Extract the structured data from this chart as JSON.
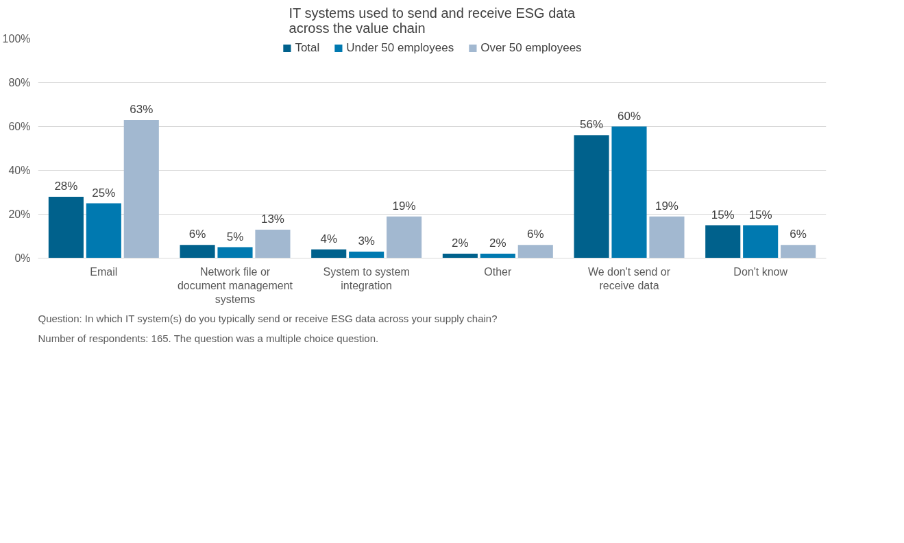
{
  "chart_data": {
    "type": "bar",
    "title": "IT systems used to send and receive ESG data\nacross the value chain",
    "categories": [
      "Email",
      "Network file or document management systems",
      "System to system integration",
      "Other",
      "We don't send or receive data",
      "Don't know"
    ],
    "series": [
      {
        "name": "Total",
        "color": "#00618c",
        "values": [
          28,
          6,
          4,
          2,
          56,
          15
        ],
        "value_labels": [
          "28%",
          "6%",
          "4%",
          "2%",
          "56%",
          "15%"
        ]
      },
      {
        "name": "Under 50 employees",
        "color": "#0079b0",
        "values": [
          25,
          5,
          3,
          2,
          60,
          15
        ],
        "value_labels": [
          "25%",
          "5%",
          "3%",
          "2%",
          "60%",
          "15%"
        ]
      },
      {
        "name": "Over 50 employees",
        "color": "#a2b8d0",
        "values": [
          63,
          13,
          19,
          6,
          19,
          6
        ],
        "value_labels": [
          "63%",
          "13%",
          "19%",
          "6%",
          "19%",
          "6%"
        ]
      }
    ],
    "ylim": [
      0,
      100
    ],
    "yticks": [
      {
        "value": 0,
        "label": "0%"
      },
      {
        "value": 20,
        "label": "20%"
      },
      {
        "value": 40,
        "label": "40%"
      },
      {
        "value": 60,
        "label": "60%"
      },
      {
        "value": 80,
        "label": "80%"
      },
      {
        "value": 100,
        "label": "100%"
      }
    ],
    "grid": "y",
    "legend": "top",
    "annotations": [
      "Question: In which IT system(s) do you typically send or receive ESG data across your supply chain?",
      "Number of respondents: 165. The question was a multiple choice question."
    ]
  }
}
